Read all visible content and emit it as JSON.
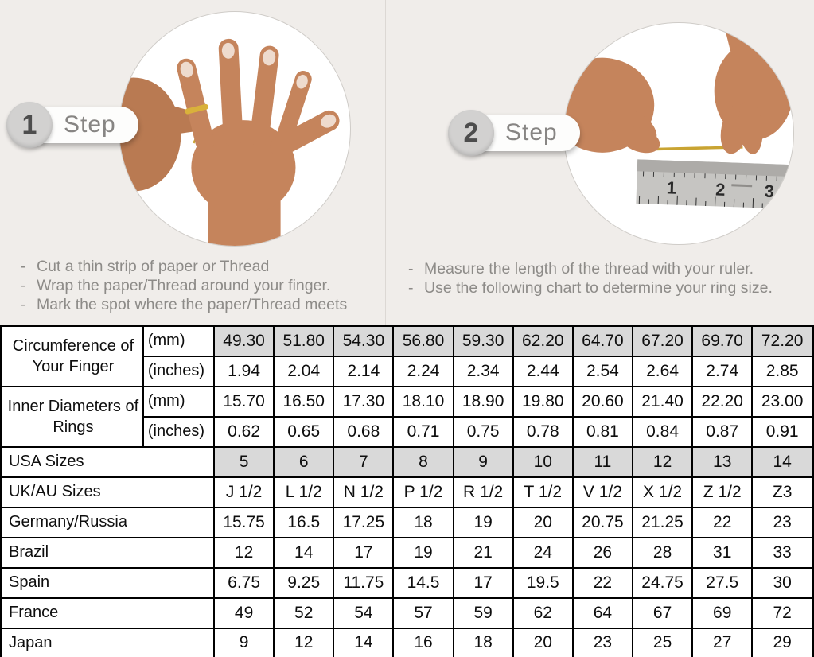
{
  "steps": [
    {
      "number": "1",
      "label": "Step",
      "instructions": [
        "Cut a thin strip of paper or Thread",
        "Wrap the paper/Thread around your finger.",
        "Mark the spot where the paper/Thread meets"
      ]
    },
    {
      "number": "2",
      "label": "Step",
      "instructions": [
        "Measure the length of the thread with your ruler.",
        "Use the following chart to determine your ring size."
      ]
    }
  ],
  "illustrations": {
    "step1": "hand-with-thread-wrapped-around-ring-finger",
    "step2": "hands-measuring-thread-with-ruler",
    "ruler_numbers": [
      "1",
      "2",
      "3"
    ]
  },
  "table": {
    "rows": [
      {
        "label": "Circumference of Your Finger",
        "labelRowspan": 2,
        "unit": "(mm)",
        "gray": true,
        "values": [
          "49.30",
          "51.80",
          "54.30",
          "56.80",
          "59.30",
          "62.20",
          "64.70",
          "67.20",
          "69.70",
          "72.20"
        ]
      },
      {
        "unit": "(inches)",
        "gray": false,
        "values": [
          "1.94",
          "2.04",
          "2.14",
          "2.24",
          "2.34",
          "2.44",
          "2.54",
          "2.64",
          "2.74",
          "2.85"
        ]
      },
      {
        "label": "Inner Diameters of Rings",
        "labelRowspan": 2,
        "unit": "(mm)",
        "gray": false,
        "values": [
          "15.70",
          "16.50",
          "17.30",
          "18.10",
          "18.90",
          "19.80",
          "20.60",
          "21.40",
          "22.20",
          "23.00"
        ]
      },
      {
        "unit": "(inches)",
        "gray": false,
        "values": [
          "0.62",
          "0.65",
          "0.68",
          "0.71",
          "0.75",
          "0.78",
          "0.81",
          "0.84",
          "0.87",
          "0.91"
        ]
      },
      {
        "label": "USA Sizes",
        "labelColspan": 2,
        "gray": true,
        "values": [
          "5",
          "6",
          "7",
          "8",
          "9",
          "10",
          "11",
          "12",
          "13",
          "14"
        ]
      },
      {
        "label": "UK/AU Sizes",
        "labelColspan": 2,
        "gray": false,
        "values": [
          "J 1/2",
          "L 1/2",
          "N 1/2",
          "P 1/2",
          "R 1/2",
          "T 1/2",
          "V 1/2",
          "X 1/2",
          "Z 1/2",
          "Z3"
        ]
      },
      {
        "label": "Germany/Russia",
        "labelColspan": 2,
        "gray": false,
        "values": [
          "15.75",
          "16.5",
          "17.25",
          "18",
          "19",
          "20",
          "20.75",
          "21.25",
          "22",
          "23"
        ]
      },
      {
        "label": "Brazil",
        "labelColspan": 2,
        "gray": false,
        "values": [
          "12",
          "14",
          "17",
          "19",
          "21",
          "24",
          "26",
          "28",
          "31",
          "33"
        ]
      },
      {
        "label": "Spain",
        "labelColspan": 2,
        "gray": false,
        "values": [
          "6.75",
          "9.25",
          "11.75",
          "14.5",
          "17",
          "19.5",
          "22",
          "24.75",
          "27.5",
          "30"
        ]
      },
      {
        "label": "France",
        "labelColspan": 2,
        "gray": false,
        "values": [
          "49",
          "52",
          "54",
          "57",
          "59",
          "62",
          "64",
          "67",
          "69",
          "72"
        ]
      },
      {
        "label": "Japan",
        "labelColspan": 2,
        "gray": false,
        "values": [
          "9",
          "12",
          "14",
          "16",
          "18",
          "20",
          "23",
          "25",
          "27",
          "29"
        ]
      }
    ]
  },
  "colors": {
    "background": "#f0edea",
    "table_highlight": "#d9d9d9",
    "instruction_text": "#8d8b88",
    "table_border": "#000000",
    "thread_gold": "#c9a432"
  }
}
